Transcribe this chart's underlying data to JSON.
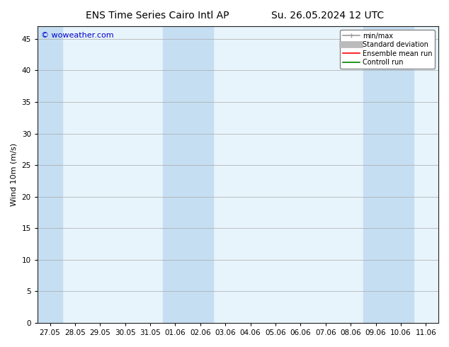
{
  "title_left": "ENS Time Series Cairo Intl AP",
  "title_right": "Su. 26.05.2024 12 UTC",
  "ylabel": "Wind 10m (m/s)",
  "watermark": "© woweather.com",
  "ylim": [
    0,
    47
  ],
  "yticks": [
    0,
    5,
    10,
    15,
    20,
    25,
    30,
    35,
    40,
    45
  ],
  "xtick_labels": [
    "27.05",
    "28.05",
    "29.05",
    "30.05",
    "31.05",
    "01.06",
    "02.06",
    "03.06",
    "04.06",
    "05.06",
    "06.06",
    "07.06",
    "08.06",
    "09.06",
    "10.06",
    "11.06"
  ],
  "bg_color": "#ffffff",
  "plot_bg_color": "#e8f4fc",
  "shaded_columns": [
    0,
    5,
    6,
    13,
    14
  ],
  "shaded_color": "#c5def2",
  "legend_items": [
    {
      "label": "min/max",
      "color": "#999999",
      "lw": 1.2
    },
    {
      "label": "Standard deviation",
      "color": "#bbbbbb",
      "lw": 7
    },
    {
      "label": "Ensemble mean run",
      "color": "#ff0000",
      "lw": 1.2
    },
    {
      "label": "Controll run",
      "color": "#008000",
      "lw": 1.2
    }
  ],
  "title_fontsize": 10,
  "ylabel_fontsize": 8,
  "tick_fontsize": 7.5,
  "watermark_color": "#0000cc",
  "watermark_fontsize": 8,
  "legend_fontsize": 7
}
